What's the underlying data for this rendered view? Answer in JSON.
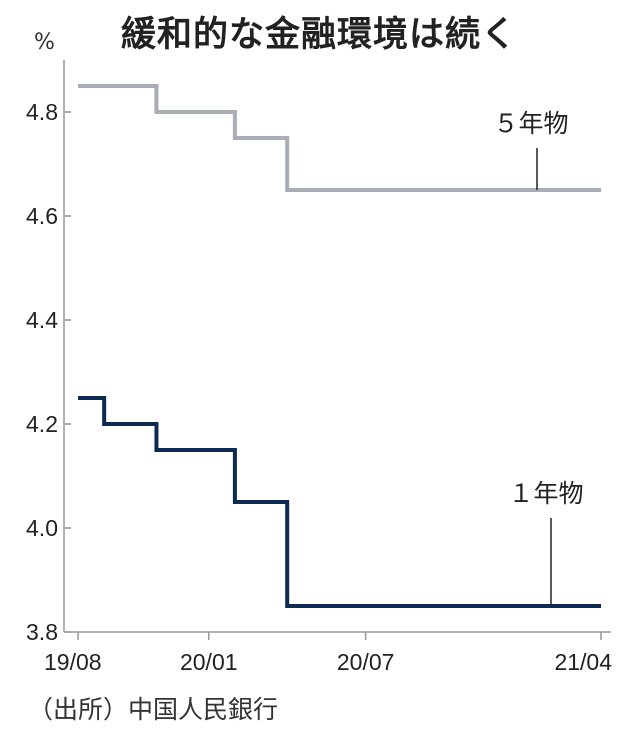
{
  "title": "緩和的な金融環境は続く",
  "source": "（出所）中国人民銀行",
  "colors": {
    "five_year": "#a8adb6",
    "one_year": "#0d2a52",
    "axis": "#999999"
  },
  "chart_data": {
    "type": "line",
    "step": "post",
    "unit": "%",
    "ylim": [
      3.8,
      4.9
    ],
    "y_ticks": [
      "3.8",
      "4.0",
      "4.2",
      "4.4",
      "4.6",
      "4.8"
    ],
    "x_ticks": [
      "19/08",
      "20/01",
      "20/07",
      "21/04"
    ],
    "x_tick_months": [
      0,
      5,
      11,
      20
    ],
    "xlim_months": [
      0,
      20
    ],
    "series": [
      {
        "name": "５年物",
        "color_key": "five_year",
        "x_months": [
          0,
          3,
          6,
          8,
          20
        ],
        "y": [
          4.85,
          4.8,
          4.75,
          4.65,
          4.65
        ]
      },
      {
        "name": "１年物",
        "color_key": "one_year",
        "x_months": [
          0,
          1,
          3,
          6,
          8,
          20
        ],
        "y": [
          4.25,
          4.2,
          4.15,
          4.05,
          3.85,
          3.85
        ]
      }
    ]
  }
}
